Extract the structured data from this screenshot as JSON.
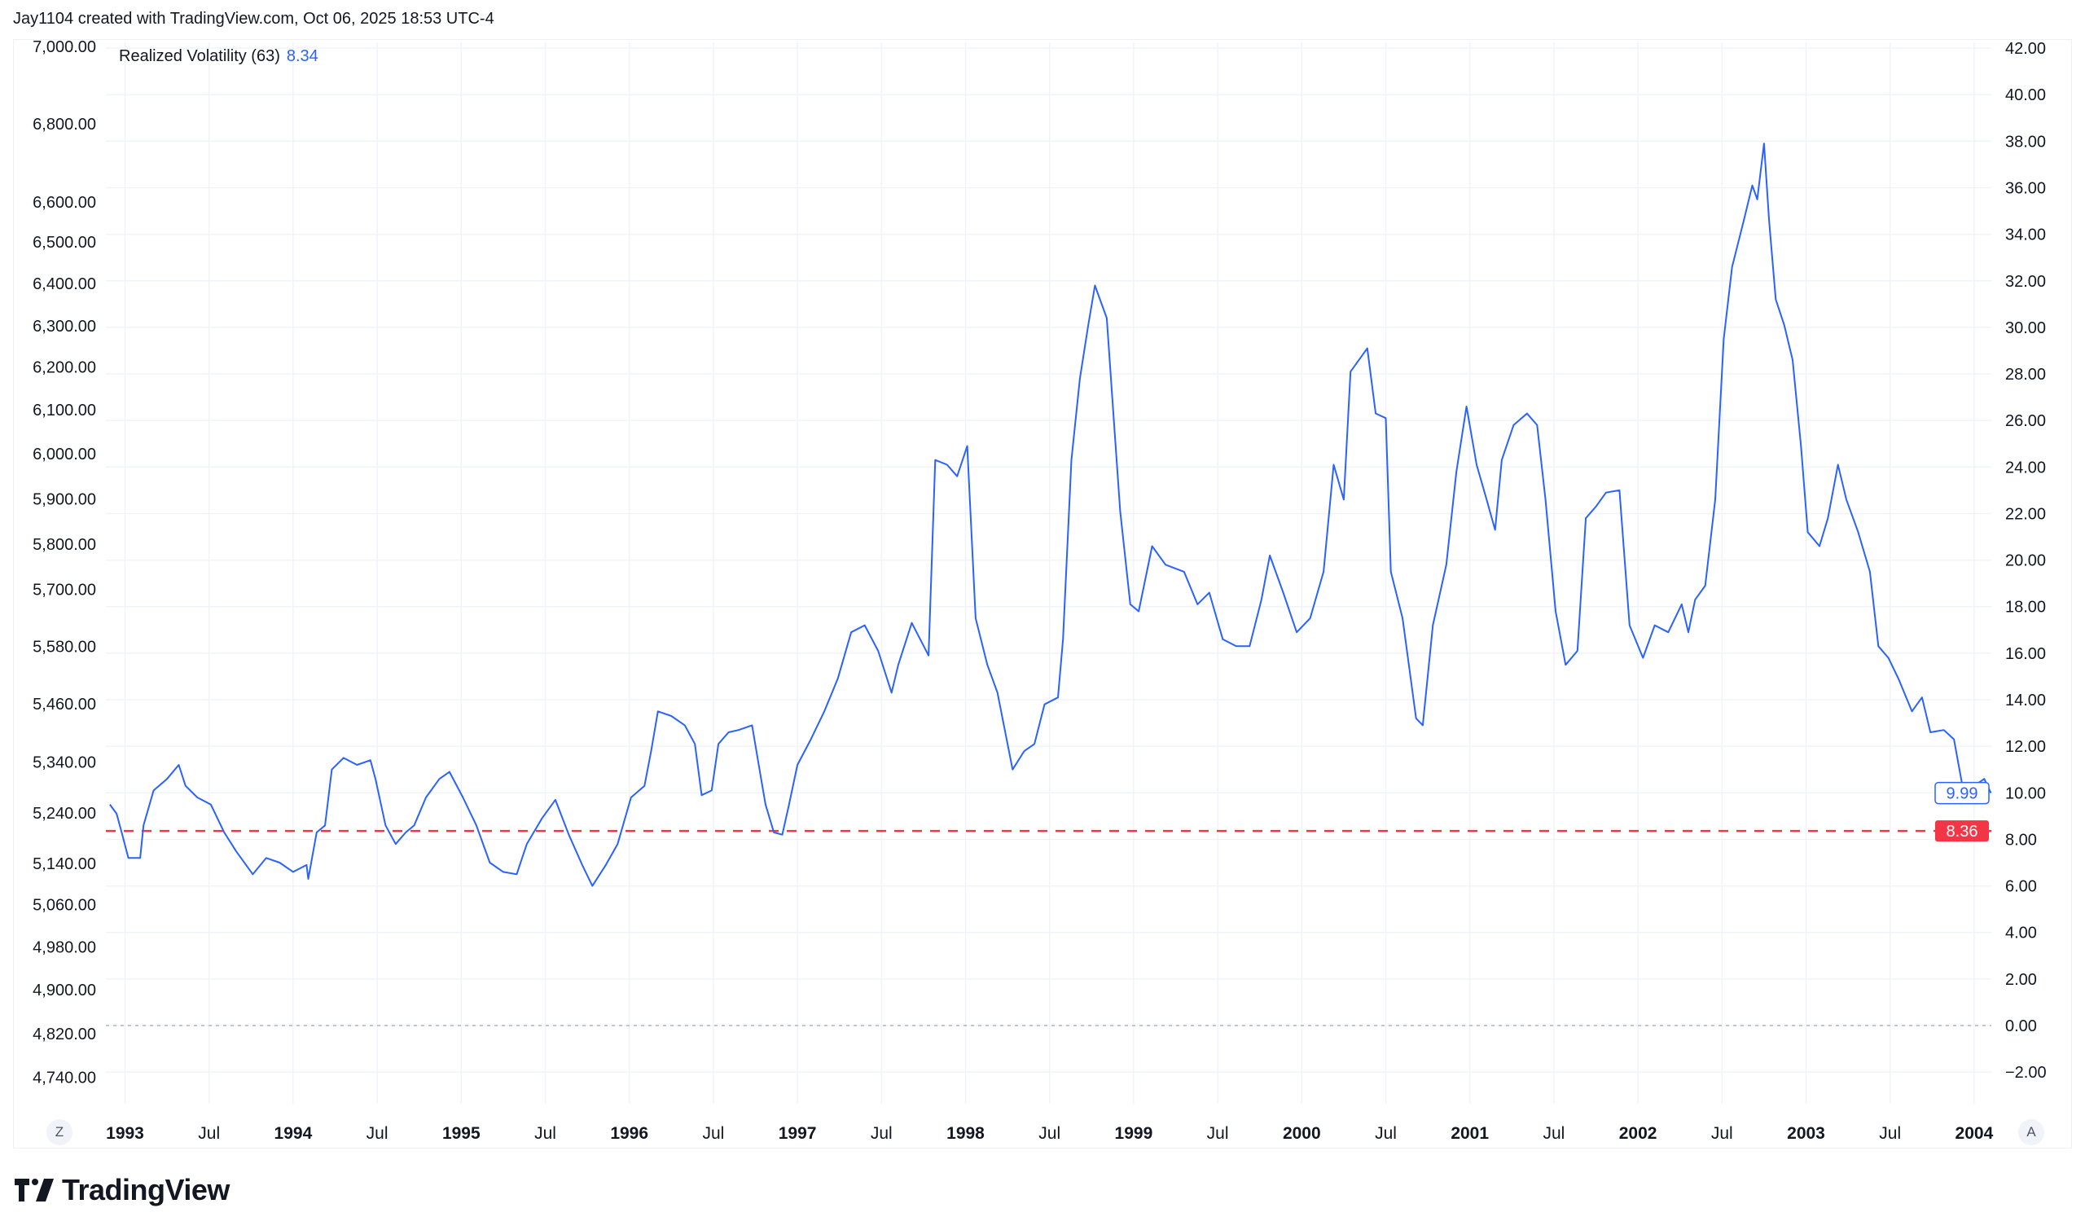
{
  "header": {
    "attribution": "Jay1104 created with TradingView.com, Oct 06, 2025 18:53 UTC-4"
  },
  "legend": {
    "name": "Realized Volatility (63)",
    "value": "8.34"
  },
  "buttons": {
    "zoom_reset": "Z",
    "auto_scale": "A"
  },
  "logo": {
    "text": "TradingView"
  },
  "colors": {
    "line": "#2962ff",
    "dashed": "#f23645",
    "grid": "#f0f3fa",
    "zero": "#b2b5be"
  },
  "chart_data": {
    "type": "line",
    "title": "Realized Volatility (63)",
    "left_axis": {
      "tick_labels": [
        "7,000.00",
        "6,800.00",
        "6,600.00",
        "6,500.00",
        "6,400.00",
        "6,300.00",
        "6,200.00",
        "6,100.00",
        "6,000.00",
        "5,900.00",
        "5,800.00",
        "5,700.00",
        "5,580.00",
        "5,460.00",
        "5,340.00",
        "5,240.00",
        "5,140.00",
        "5,060.00",
        "4,980.00",
        "4,900.00",
        "4,820.00",
        "4,740.00"
      ]
    },
    "right_axis": {
      "ylim": [
        -3,
        44
      ],
      "ticks": [
        42,
        40,
        38,
        36,
        34,
        32,
        30,
        28,
        26,
        24,
        22,
        20,
        18,
        16,
        14,
        12,
        10,
        8,
        6,
        4,
        2,
        0,
        -2
      ],
      "tick_labels": [
        "42.00",
        "40.00",
        "38.00",
        "36.00",
        "34.00",
        "32.00",
        "30.00",
        "28.00",
        "26.00",
        "24.00",
        "22.00",
        "20.00",
        "18.00",
        "16.00",
        "14.00",
        "12.00",
        "10.00",
        "8.00",
        "6.00",
        "4.00",
        "2.00",
        "0.00",
        "−2.00"
      ]
    },
    "x_axis": {
      "ticks": [
        1993,
        1993.5,
        1994,
        1994.5,
        1995,
        1995.5,
        1996,
        1996.5,
        1997,
        1997.5,
        1998,
        1998.5,
        1999,
        1999.5,
        2000,
        2000.5,
        2001,
        2001.5,
        2002,
        2002.5,
        2003,
        2003.5,
        2004
      ],
      "tick_labels": [
        "1993",
        "Jul",
        "1994",
        "Jul",
        "1995",
        "Jul",
        "1996",
        "Jul",
        "1997",
        "Jul",
        "1998",
        "Jul",
        "1999",
        "Jul",
        "2000",
        "Jul",
        "2001",
        "Jul",
        "2002",
        "Jul",
        "2003",
        "Jul",
        "2004"
      ]
    },
    "reference_line": {
      "value": 8.36,
      "label": "8.36",
      "style": "dashed"
    },
    "last_value_label": "9.99",
    "zero_line": 0,
    "series": [
      {
        "name": "Realized Volatility (63)",
        "x": [
          1992.91,
          1992.95,
          1992.98,
          1993.02,
          1993.09,
          1993.11,
          1993.17,
          1993.25,
          1993.32,
          1993.36,
          1993.43,
          1993.51,
          1993.59,
          1993.66,
          1993.76,
          1993.84,
          1993.92,
          1994.0,
          1994.08,
          1994.09,
          1994.14,
          1994.19,
          1994.23,
          1994.3,
          1994.38,
          1994.46,
          1994.49,
          1994.55,
          1994.61,
          1994.67,
          1994.72,
          1994.79,
          1994.87,
          1994.93,
          1995.01,
          1995.09,
          1995.17,
          1995.25,
          1995.33,
          1995.39,
          1995.48,
          1995.56,
          1995.64,
          1995.72,
          1995.78,
          1995.86,
          1995.93,
          1996.01,
          1996.09,
          1996.13,
          1996.17,
          1996.25,
          1996.33,
          1996.39,
          1996.43,
          1996.49,
          1996.53,
          1996.59,
          1996.65,
          1996.73,
          1996.77,
          1996.81,
          1996.86,
          1996.91,
          1996.95,
          1997.0,
          1997.08,
          1997.16,
          1997.24,
          1997.32,
          1997.4,
          1997.48,
          1997.56,
          1997.6,
          1997.68,
          1997.73,
          1997.78,
          1997.82,
          1997.89,
          1997.95,
          1998.01,
          1998.06,
          1998.13,
          1998.19,
          1998.25,
          1998.28,
          1998.35,
          1998.41,
          1998.47,
          1998.55,
          1998.58,
          1998.63,
          1998.68,
          1998.73,
          1998.77,
          1998.84,
          1998.89,
          1998.92,
          1998.98,
          1999.03,
          1999.11,
          1999.19,
          1999.3,
          1999.38,
          1999.45,
          1999.53,
          1999.61,
          1999.69,
          1999.76,
          1999.81,
          1999.89,
          1999.97,
          2000.05,
          2000.13,
          2000.19,
          2000.25,
          2000.29,
          2000.34,
          2000.39,
          2000.44,
          2000.5,
          2000.53,
          2000.6,
          2000.68,
          2000.72,
          2000.78,
          2000.86,
          2000.92,
          2000.98,
          2001.04,
          2001.1,
          2001.15,
          2001.19,
          2001.26,
          2001.34,
          2001.4,
          2001.45,
          2001.51,
          2001.57,
          2001.64,
          2001.69,
          2001.75,
          2001.81,
          2001.89,
          2001.95,
          2002.03,
          2002.1,
          2002.18,
          2002.26,
          2002.3,
          2002.34,
          2002.4,
          2002.46,
          2002.51,
          2002.56,
          2002.63,
          2002.68,
          2002.71,
          2002.75,
          2002.78,
          2002.82,
          2002.87,
          2002.92,
          2002.97,
          2003.01,
          2003.08,
          2003.13,
          2003.19,
          2003.24,
          2003.31,
          2003.38,
          2003.43,
          2003.49,
          2003.55,
          2003.63,
          2003.69,
          2003.74,
          2003.82,
          2003.88,
          2003.93,
          2004.0,
          2004.06,
          2004.1
        ],
        "y": [
          9.5,
          9.1,
          8.3,
          7.2,
          7.2,
          8.6,
          10.1,
          10.6,
          11.2,
          10.3,
          9.8,
          9.5,
          8.3,
          7.5,
          6.5,
          7.2,
          7.0,
          6.6,
          6.9,
          6.3,
          8.3,
          8.6,
          11.0,
          11.5,
          11.2,
          11.4,
          10.6,
          8.6,
          7.8,
          8.3,
          8.6,
          9.8,
          10.6,
          10.9,
          9.8,
          8.6,
          7.0,
          6.6,
          6.5,
          7.8,
          8.9,
          9.7,
          8.2,
          6.9,
          6.0,
          6.9,
          7.8,
          9.8,
          10.3,
          11.8,
          13.5,
          13.3,
          12.9,
          12.1,
          9.9,
          10.1,
          12.1,
          12.6,
          12.7,
          12.9,
          11.2,
          9.5,
          8.3,
          8.2,
          9.5,
          11.2,
          12.3,
          13.5,
          14.9,
          16.9,
          17.2,
          16.1,
          14.3,
          15.5,
          17.3,
          16.6,
          15.9,
          24.3,
          24.1,
          23.6,
          24.9,
          17.5,
          15.5,
          14.3,
          12.1,
          11.0,
          11.8,
          12.1,
          13.8,
          14.1,
          16.6,
          24.3,
          27.8,
          30.1,
          31.8,
          30.4,
          25.2,
          22.1,
          18.1,
          17.8,
          20.6,
          19.8,
          19.5,
          18.1,
          18.6,
          16.6,
          16.3,
          16.3,
          18.3,
          20.2,
          18.6,
          16.9,
          17.5,
          19.5,
          24.1,
          22.6,
          28.1,
          28.6,
          29.1,
          26.3,
          26.1,
          19.5,
          17.5,
          13.2,
          12.9,
          17.2,
          19.8,
          23.8,
          26.6,
          24.1,
          22.6,
          21.3,
          24.3,
          25.8,
          26.3,
          25.8,
          22.6,
          17.8,
          15.5,
          16.1,
          21.8,
          22.3,
          22.9,
          23.0,
          17.2,
          15.8,
          17.2,
          16.9,
          18.1,
          16.9,
          18.3,
          18.9,
          22.6,
          29.5,
          32.6,
          34.6,
          36.1,
          35.5,
          37.9,
          34.6,
          31.2,
          30.1,
          28.6,
          24.9,
          21.2,
          20.6,
          21.8,
          24.1,
          22.6,
          21.2,
          19.5,
          16.3,
          15.8,
          14.9,
          13.5,
          14.1,
          12.6,
          12.7,
          12.3,
          10.3,
          10.3,
          10.6,
          9.99
        ]
      }
    ]
  }
}
